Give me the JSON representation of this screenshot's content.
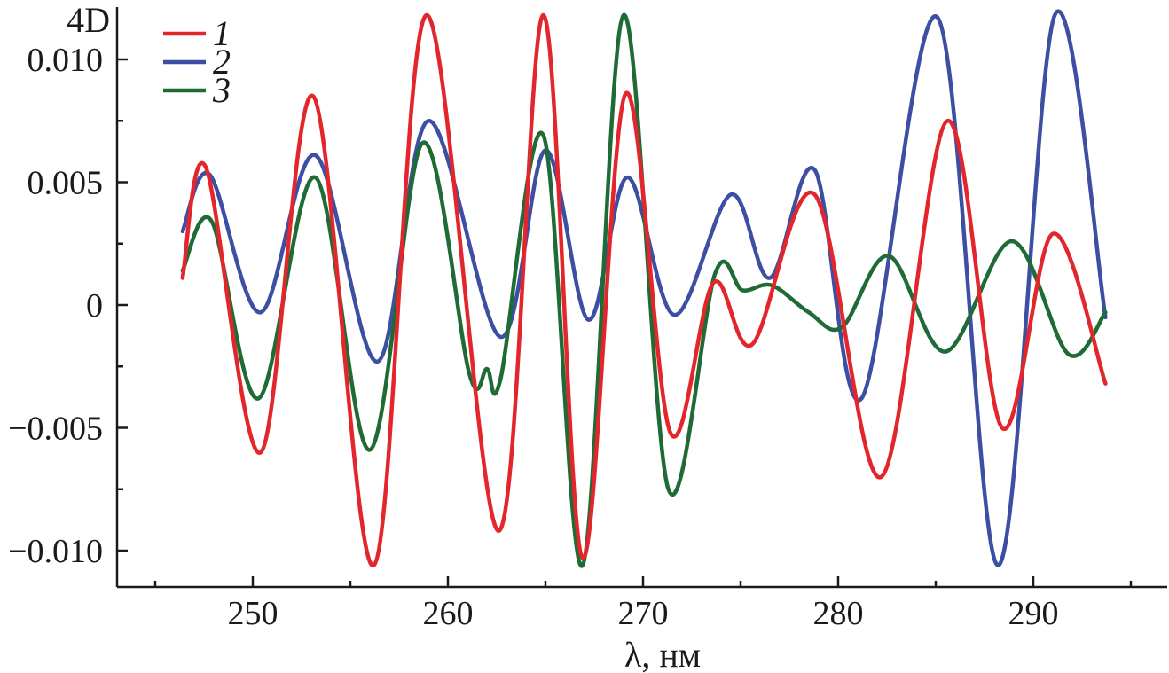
{
  "chart_data": {
    "type": "line",
    "title": "",
    "xlabel": "λ, нм",
    "ylabel": "4D",
    "xlim": [
      243,
      297
    ],
    "ylim": [
      -0.0115,
      0.0122
    ],
    "x_ticks": [
      250,
      260,
      270,
      280,
      290
    ],
    "x_tick_labels": [
      "250",
      "260",
      "270",
      "280",
      "290"
    ],
    "y_ticks": [
      0.01,
      0.005,
      0,
      -0.005,
      -0.01
    ],
    "y_tick_labels": [
      "0.010",
      "0.005",
      "0",
      "−0.005",
      "−0.010"
    ],
    "grid": false,
    "legend_position": "top-left",
    "series": [
      {
        "name": "1",
        "color": "#e3262b",
        "x": [
          246.4,
          247.6,
          250.4,
          253.1,
          256.2,
          258.9,
          262.6,
          264.9,
          266.9,
          269.1,
          271.4,
          273.6,
          275.6,
          278.8,
          282.2,
          285.6,
          288.4,
          291.0,
          293.7
        ],
        "y": [
          0.0011,
          0.0056,
          -0.006,
          0.0085,
          -0.0106,
          0.0118,
          -0.0092,
          0.0118,
          -0.0103,
          0.0086,
          -0.0052,
          0.0009,
          -0.0016,
          0.0045,
          -0.007,
          0.0075,
          -0.005,
          0.0029,
          -0.0032
        ]
      },
      {
        "name": "2",
        "color": "#3c4fa3",
        "x": [
          246.4,
          247.8,
          250.4,
          253.2,
          256.4,
          259.0,
          262.7,
          265.0,
          267.2,
          269.2,
          271.6,
          274.5,
          276.5,
          278.8,
          281.2,
          285.1,
          288.2,
          291.1,
          293.7
        ],
        "y": [
          0.003,
          0.0053,
          -0.0003,
          0.0061,
          -0.0023,
          0.0075,
          -0.0013,
          0.0063,
          -0.0006,
          0.0052,
          -0.0004,
          0.0045,
          0.0011,
          0.0055,
          -0.0038,
          0.0117,
          -0.0106,
          0.0118,
          -0.0005
        ]
      },
      {
        "name": "3",
        "color": "#1f6b35",
        "x": [
          246.4,
          247.9,
          250.3,
          253.2,
          256.0,
          258.7,
          261.1,
          262.0,
          262.7,
          264.9,
          266.9,
          269.0,
          271.3,
          273.7,
          275.1,
          276.6,
          278.5,
          280.2,
          282.6,
          285.5,
          288.9,
          291.8,
          293.7
        ],
        "y": [
          0.0014,
          0.0034,
          -0.0038,
          0.0052,
          -0.0059,
          0.0066,
          -0.0028,
          -0.0026,
          -0.003,
          0.0069,
          -0.0106,
          0.0118,
          -0.0075,
          0.0013,
          0.0006,
          0.0008,
          -0.0003,
          -0.0009,
          0.002,
          -0.0019,
          0.0026,
          -0.002,
          -0.0003
        ]
      }
    ]
  }
}
